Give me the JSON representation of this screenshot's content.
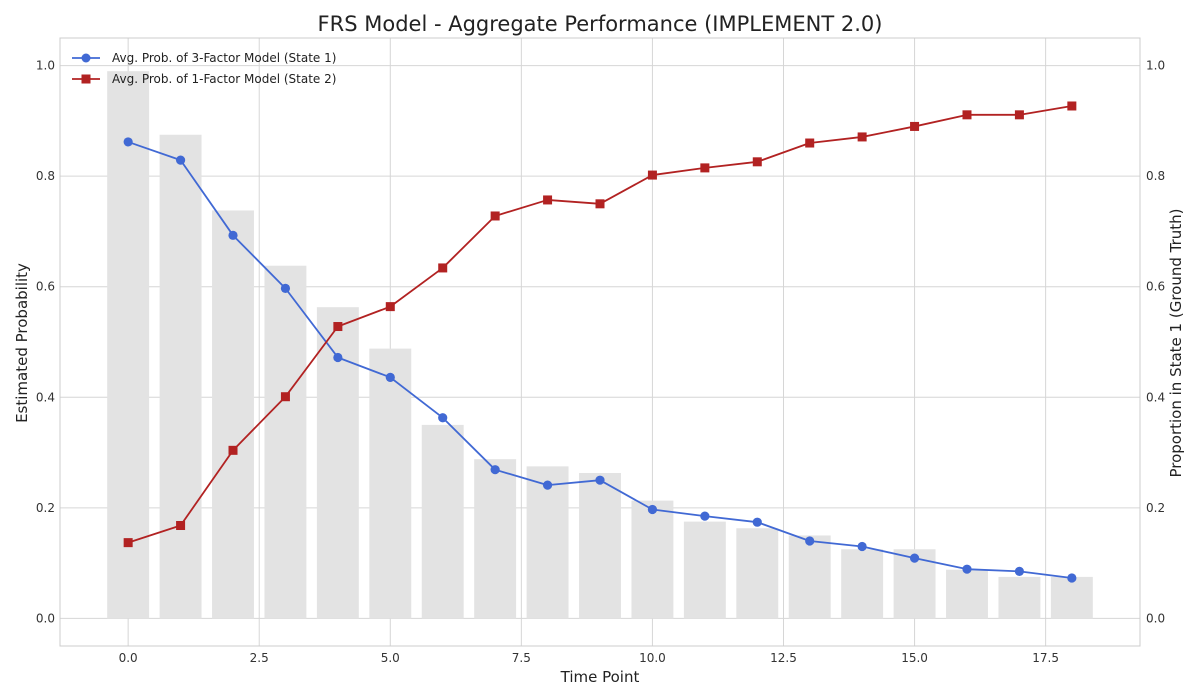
{
  "chart_data": {
    "type": "line",
    "title": "FRS Model - Aggregate Performance (IMPLEMENT 2.0)",
    "xlabel": "Time Point",
    "ylabel": "Estimated Probability",
    "y2label": "Proportion in State 1 (Ground Truth)",
    "xlim": [
      -1.3,
      19.3
    ],
    "ylim": [
      -0.05,
      1.05
    ],
    "y2lim": [
      -0.05,
      1.05
    ],
    "xticks": [
      0.0,
      2.5,
      5.0,
      7.5,
      10.0,
      12.5,
      15.0,
      17.5
    ],
    "xtick_labels": [
      "0.0",
      "2.5",
      "5.0",
      "7.5",
      "10.0",
      "12.5",
      "15.0",
      "17.5"
    ],
    "yticks": [
      0.0,
      0.2,
      0.4,
      0.6,
      0.8,
      1.0
    ],
    "ytick_labels": [
      "0.0",
      "0.2",
      "0.4",
      "0.6",
      "0.8",
      "1.0"
    ],
    "y2ticks": [
      0.0,
      0.2,
      0.4,
      0.6,
      0.8,
      1.0
    ],
    "y2tick_labels": [
      "0.0",
      "0.2",
      "0.4",
      "0.6",
      "0.8",
      "1.0"
    ],
    "grid": true,
    "legend_position": "top-left",
    "x": [
      0,
      1,
      2,
      3,
      4,
      5,
      6,
      7,
      8,
      9,
      10,
      11,
      12,
      13,
      14,
      15,
      16,
      17,
      18
    ],
    "series": [
      {
        "name": "Avg. Prob. of 3-Factor Model (State 1)",
        "kind": "line",
        "marker": "circle",
        "color": "#4169d4",
        "values": [
          0.862,
          0.829,
          0.693,
          0.597,
          0.472,
          0.436,
          0.363,
          0.269,
          0.241,
          0.25,
          0.197,
          0.185,
          0.174,
          0.14,
          0.13,
          0.109,
          0.089,
          0.085,
          0.073
        ]
      },
      {
        "name": "Avg. Prob. of 1-Factor Model (State 2)",
        "kind": "line",
        "marker": "square",
        "color": "#b22222",
        "values": [
          0.137,
          0.168,
          0.304,
          0.401,
          0.528,
          0.564,
          0.634,
          0.728,
          0.757,
          0.75,
          0.802,
          0.815,
          0.826,
          0.86,
          0.871,
          0.89,
          0.911,
          0.911,
          0.927
        ]
      },
      {
        "kind": "bar",
        "axis": "right",
        "color": "#e3e3e3",
        "values": [
          0.99,
          0.875,
          0.738,
          0.638,
          0.563,
          0.488,
          0.35,
          0.288,
          0.275,
          0.263,
          0.213,
          0.175,
          0.163,
          0.15,
          0.125,
          0.125,
          0.088,
          0.075,
          0.075
        ]
      }
    ]
  }
}
